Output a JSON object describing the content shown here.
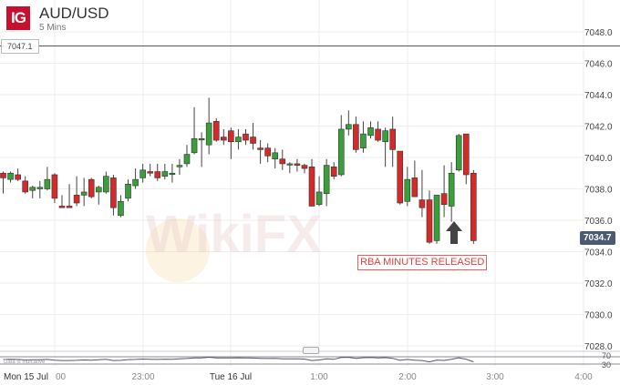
{
  "header": {
    "logo": "IG",
    "symbol": "AUD/USD",
    "timeframe": "5 Mins"
  },
  "horizontal_line_label": "7047.1",
  "current_price_label": "7034.7",
  "annotation": "RBA MINUTES RELEASED",
  "indicator": {
    "note": "Data is indicative",
    "levels": [
      "70",
      "30"
    ]
  },
  "watermark": "WikiFX",
  "colors": {
    "up": "#3a9e3a",
    "down": "#d42a2a",
    "current_price_bg": "#4a5a70",
    "annotation": "#e04040",
    "logo": "#c8102e"
  },
  "chart_data": {
    "type": "candlestick",
    "title": "AUD/USD",
    "ylim": [
      7027,
      7049
    ],
    "yticks": [
      "7028.0",
      "7030.0",
      "7032.0",
      "7034.0",
      "7036.0",
      "7038.0",
      "7040.0",
      "7042.0",
      "7044.0",
      "7046.0",
      "7048.0"
    ],
    "xticks": [
      "Mon 15 Jul",
      "00",
      "23:00",
      "Tue 16 Jul",
      "1:00",
      "2:00",
      "3:00",
      "4:00"
    ],
    "grid": true,
    "horizontal_line": 7047.1,
    "last_price": 7034.7,
    "ohlc": [
      [
        7039.0,
        7039.1,
        7037.7,
        7038.7
      ],
      [
        7038.6,
        7039.1,
        7038.4,
        7039.0
      ],
      [
        7038.9,
        7039.3,
        7038.5,
        7038.6
      ],
      [
        7038.5,
        7038.8,
        7037.7,
        7037.8
      ],
      [
        7037.9,
        7038.2,
        7037.4,
        7038.1
      ],
      [
        7038.0,
        7038.5,
        7037.4,
        7038.1
      ],
      [
        7038.0,
        7039.4,
        7037.9,
        7038.6
      ],
      [
        7038.9,
        7039.0,
        7037.1,
        7037.4
      ],
      [
        7036.9,
        7037.6,
        7036.8,
        7036.8
      ],
      [
        7036.9,
        7038.3,
        7036.8,
        7036.8
      ],
      [
        7037.6,
        7038.8,
        7036.9,
        7037.1
      ],
      [
        7037.6,
        7038.7,
        7036.9,
        7037.8
      ],
      [
        7038.6,
        7038.7,
        7037.4,
        7037.5
      ],
      [
        7037.8,
        7038.2,
        7037.0,
        7038.1
      ],
      [
        7037.8,
        7039.1,
        7037.7,
        7038.8
      ],
      [
        7038.7,
        7038.9,
        7036.3,
        7036.8
      ],
      [
        7036.3,
        7037.6,
        7036.2,
        7037.2
      ],
      [
        7037.4,
        7038.6,
        7037.2,
        7038.3
      ],
      [
        7038.2,
        7039.3,
        7038.0,
        7038.6
      ],
      [
        7038.7,
        7039.6,
        7038.4,
        7039.2
      ],
      [
        7039.1,
        7039.6,
        7038.8,
        7039.0
      ],
      [
        7039.1,
        7039.6,
        7038.5,
        7038.7
      ],
      [
        7038.8,
        7039.6,
        7038.6,
        7039.1
      ],
      [
        7039.0,
        7039.6,
        7038.4,
        7039.0
      ],
      [
        7039.4,
        7039.9,
        7038.9,
        7039.5
      ],
      [
        7039.6,
        7040.8,
        7039.4,
        7040.2
      ],
      [
        7040.3,
        7043.2,
        7040.2,
        7041.2
      ],
      [
        7041.2,
        7041.6,
        7039.4,
        7041.2
      ],
      [
        7040.8,
        7043.8,
        7040.2,
        7042.2
      ],
      [
        7042.3,
        7042.5,
        7041.0,
        7041.1
      ],
      [
        7041.3,
        7041.8,
        7040.8,
        7041.1
      ],
      [
        7041.7,
        7041.9,
        7039.9,
        7041.0
      ],
      [
        7041.0,
        7041.8,
        7040.5,
        7041.3
      ],
      [
        7041.5,
        7041.8,
        7040.8,
        7041.1
      ],
      [
        7041.3,
        7042.2,
        7040.5,
        7040.9
      ],
      [
        7040.6,
        7041.1,
        7039.6,
        7040.5
      ],
      [
        7040.6,
        7040.9,
        7039.7,
        7040.1
      ],
      [
        7039.9,
        7040.6,
        7039.3,
        7040.3
      ],
      [
        7039.9,
        7040.5,
        7039.2,
        7039.6
      ],
      [
        7039.6,
        7039.7,
        7039.0,
        7039.6
      ],
      [
        7039.6,
        7039.9,
        7039.1,
        7039.5
      ],
      [
        7039.5,
        7039.6,
        7039.0,
        7039.3
      ],
      [
        7039.4,
        7039.9,
        7036.9,
        7036.9
      ],
      [
        7037.0,
        7038.8,
        7036.9,
        7037.8
      ],
      [
        7037.7,
        7039.9,
        7036.9,
        7039.5
      ],
      [
        7039.4,
        7039.7,
        7038.6,
        7038.8
      ],
      [
        7038.9,
        7042.7,
        7038.8,
        7041.8
      ],
      [
        7041.8,
        7043.0,
        7041.4,
        7042.1
      ],
      [
        7042.1,
        7042.6,
        7040.3,
        7040.5
      ],
      [
        7040.6,
        7042.3,
        7040.3,
        7041.5
      ],
      [
        7041.4,
        7042.3,
        7041.2,
        7041.9
      ],
      [
        7041.8,
        7042.3,
        7041.0,
        7041.1
      ],
      [
        7041.0,
        7041.9,
        7039.4,
        7041.7
      ],
      [
        7041.8,
        7042.6,
        7039.4,
        7040.5
      ],
      [
        7040.4,
        7040.4,
        7037.0,
        7037.1
      ],
      [
        7037.2,
        7039.4,
        7036.9,
        7038.6
      ],
      [
        7038.7,
        7039.8,
        7037.5,
        7037.5
      ],
      [
        7037.3,
        7039.2,
        7036.2,
        7036.8
      ],
      [
        7037.3,
        7037.9,
        7034.5,
        7034.6
      ],
      [
        7034.7,
        7037.6,
        7034.5,
        7037.6
      ],
      [
        7037.7,
        7039.5,
        7036.2,
        7037.0
      ],
      [
        7036.9,
        7039.7,
        7035.9,
        7039.0
      ],
      [
        7039.2,
        7041.5,
        7039.1,
        7041.4
      ],
      [
        7041.5,
        7041.5,
        7038.3,
        7038.9
      ],
      [
        7039.0,
        7039.2,
        7034.5,
        7034.7
      ]
    ]
  }
}
